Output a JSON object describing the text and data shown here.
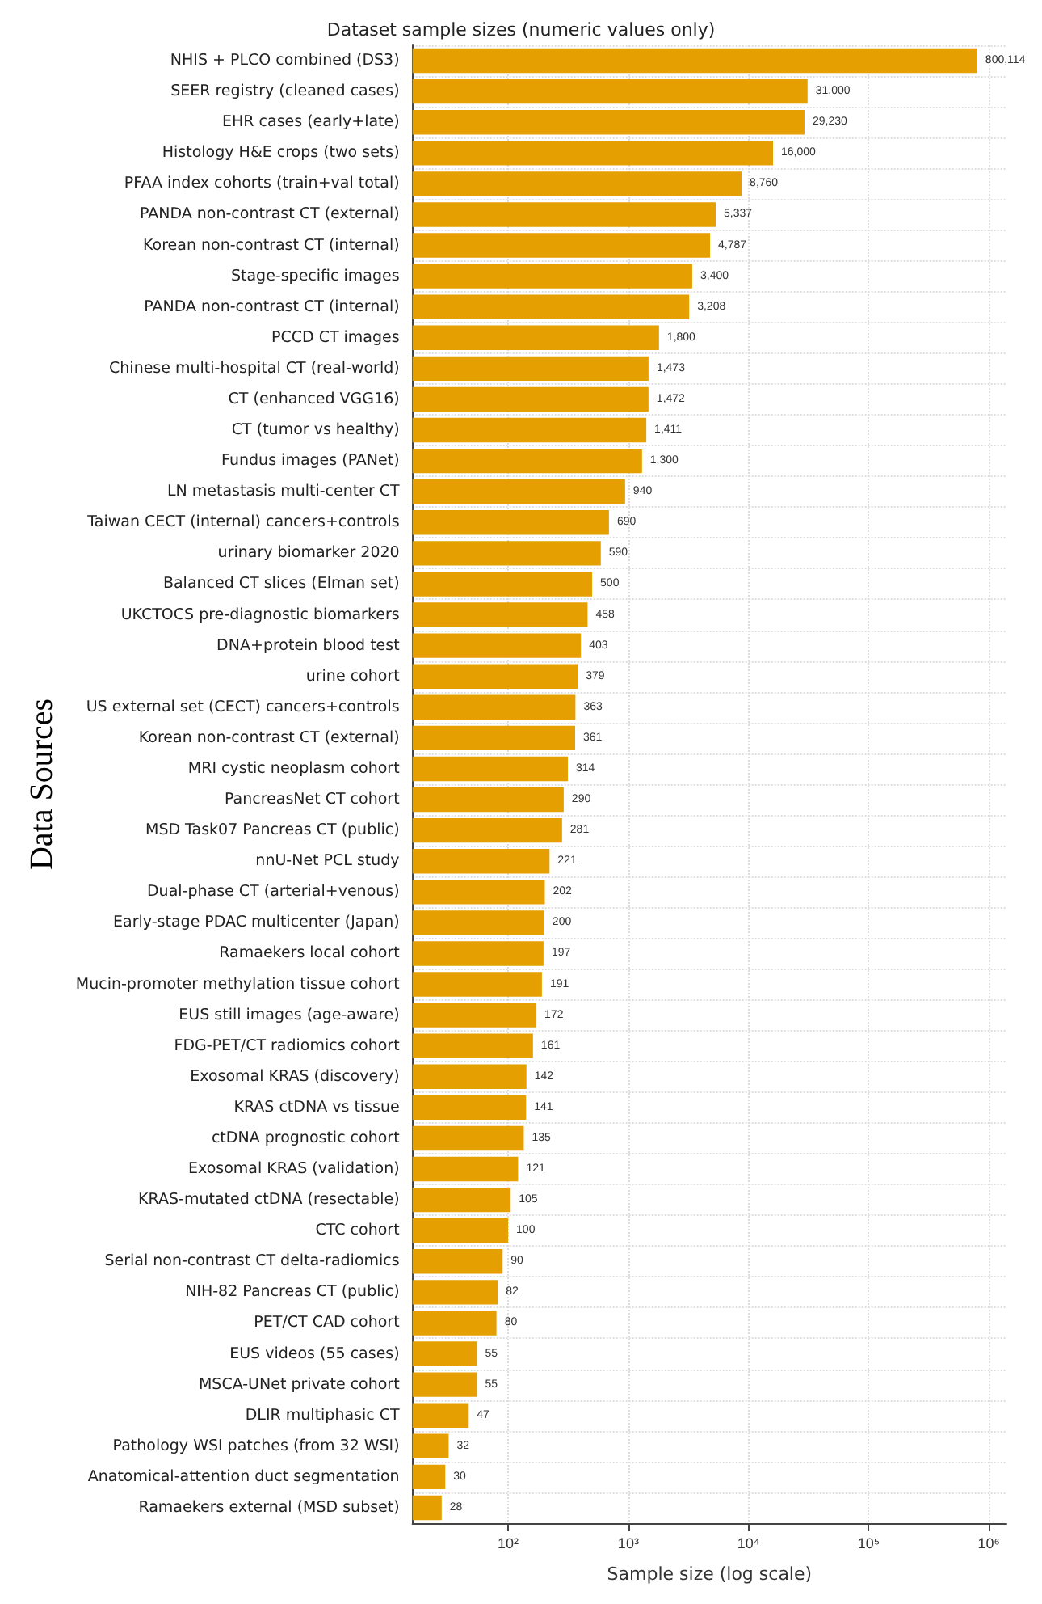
{
  "chart_data": {
    "type": "bar",
    "orientation": "horizontal",
    "title": "Dataset sample sizes (numeric values only)",
    "xlabel": "Sample size (log scale)",
    "ylabel": "Data Sources",
    "log": "x",
    "grid": true,
    "color": "#e69f00",
    "categories": [
      "NHIS + PLCO combined (DS3)",
      "SEER registry (cleaned cases)",
      "EHR cases (early+late)",
      "Histology H&E crops (two sets)",
      "PFAA index cohorts (train+val total)",
      "PANDA non-contrast CT (external)",
      "Korean non-contrast CT (internal)",
      "Stage-specific images",
      "PANDA non-contrast CT (internal)",
      "PCCD CT images",
      "Chinese multi-hospital CT (real-world)",
      "CT (enhanced VGG16)",
      "CT (tumor vs healthy)",
      "Fundus images (PANet)",
      "LN metastasis multi-center CT",
      "Taiwan CECT (internal) cancers+controls",
      "urinary biomarker 2020",
      "Balanced CT slices (Elman set)",
      "UKCTOCS pre-diagnostic biomarkers",
      "DNA+protein blood test",
      "urine cohort",
      "US external set (CECT) cancers+controls",
      "Korean non-contrast CT (external)",
      "MRI cystic neoplasm cohort",
      "PancreasNet CT cohort",
      "MSD Task07 Pancreas CT (public)",
      "nnU-Net PCL study",
      "Dual-phase CT (arterial+venous)",
      "Early-stage PDAC multicenter (Japan)",
      "Ramaekers local cohort",
      "Mucin-promoter methylation tissue cohort",
      "EUS still images (age-aware)",
      "FDG-PET/CT radiomics cohort",
      "Exosomal KRAS (discovery)",
      "KRAS ctDNA vs tissue",
      "ctDNA prognostic cohort",
      "Exosomal KRAS (validation)",
      "KRAS-mutated ctDNA (resectable)",
      "CTC cohort",
      "Serial non-contrast CT delta-radiomics",
      "NIH-82 Pancreas CT (public)",
      "PET/CT CAD cohort",
      "EUS videos (55 cases)",
      "MSCA-UNet private cohort",
      "DLIR multiphasic CT",
      "Pathology WSI patches (from 32 WSI)",
      "Anatomical-attention duct segmentation",
      "Ramaekers external (MSD subset)"
    ],
    "values": [
      800114,
      31000,
      29230,
      16000,
      8760,
      5337,
      4787,
      3400,
      3208,
      1800,
      1473,
      1472,
      1411,
      1300,
      940,
      690,
      590,
      500,
      458,
      403,
      379,
      363,
      361,
      314,
      290,
      281,
      221,
      202,
      200,
      197,
      191,
      172,
      161,
      142,
      141,
      135,
      121,
      105,
      100,
      90,
      82,
      80,
      55,
      55,
      47,
      32,
      30,
      28
    ],
    "value_labels": [
      "800,114",
      "31,000",
      "29,230",
      "16,000",
      "8,760",
      "5,337",
      "4,787",
      "3,400",
      "3,208",
      "1,800",
      "1,473",
      "1,472",
      "1,411",
      "1,300",
      "940",
      "690",
      "590",
      "500",
      "458",
      "403",
      "379",
      "363",
      "361",
      "314",
      "290",
      "281",
      "221",
      "202",
      "200",
      "197",
      "191",
      "172",
      "161",
      "142",
      "141",
      "135",
      "121",
      "105",
      "100",
      "90",
      "82",
      "80",
      "55",
      "55",
      "47",
      "32",
      "30",
      "28"
    ],
    "xlim": [
      16,
      1400000
    ],
    "xticks": [
      {
        "value": 100,
        "label": "10²"
      },
      {
        "value": 1000,
        "label": "10³"
      },
      {
        "value": 10000,
        "label": "10⁴"
      },
      {
        "value": 100000,
        "label": "10⁵"
      },
      {
        "value": 1000000,
        "label": "10⁶"
      }
    ]
  }
}
